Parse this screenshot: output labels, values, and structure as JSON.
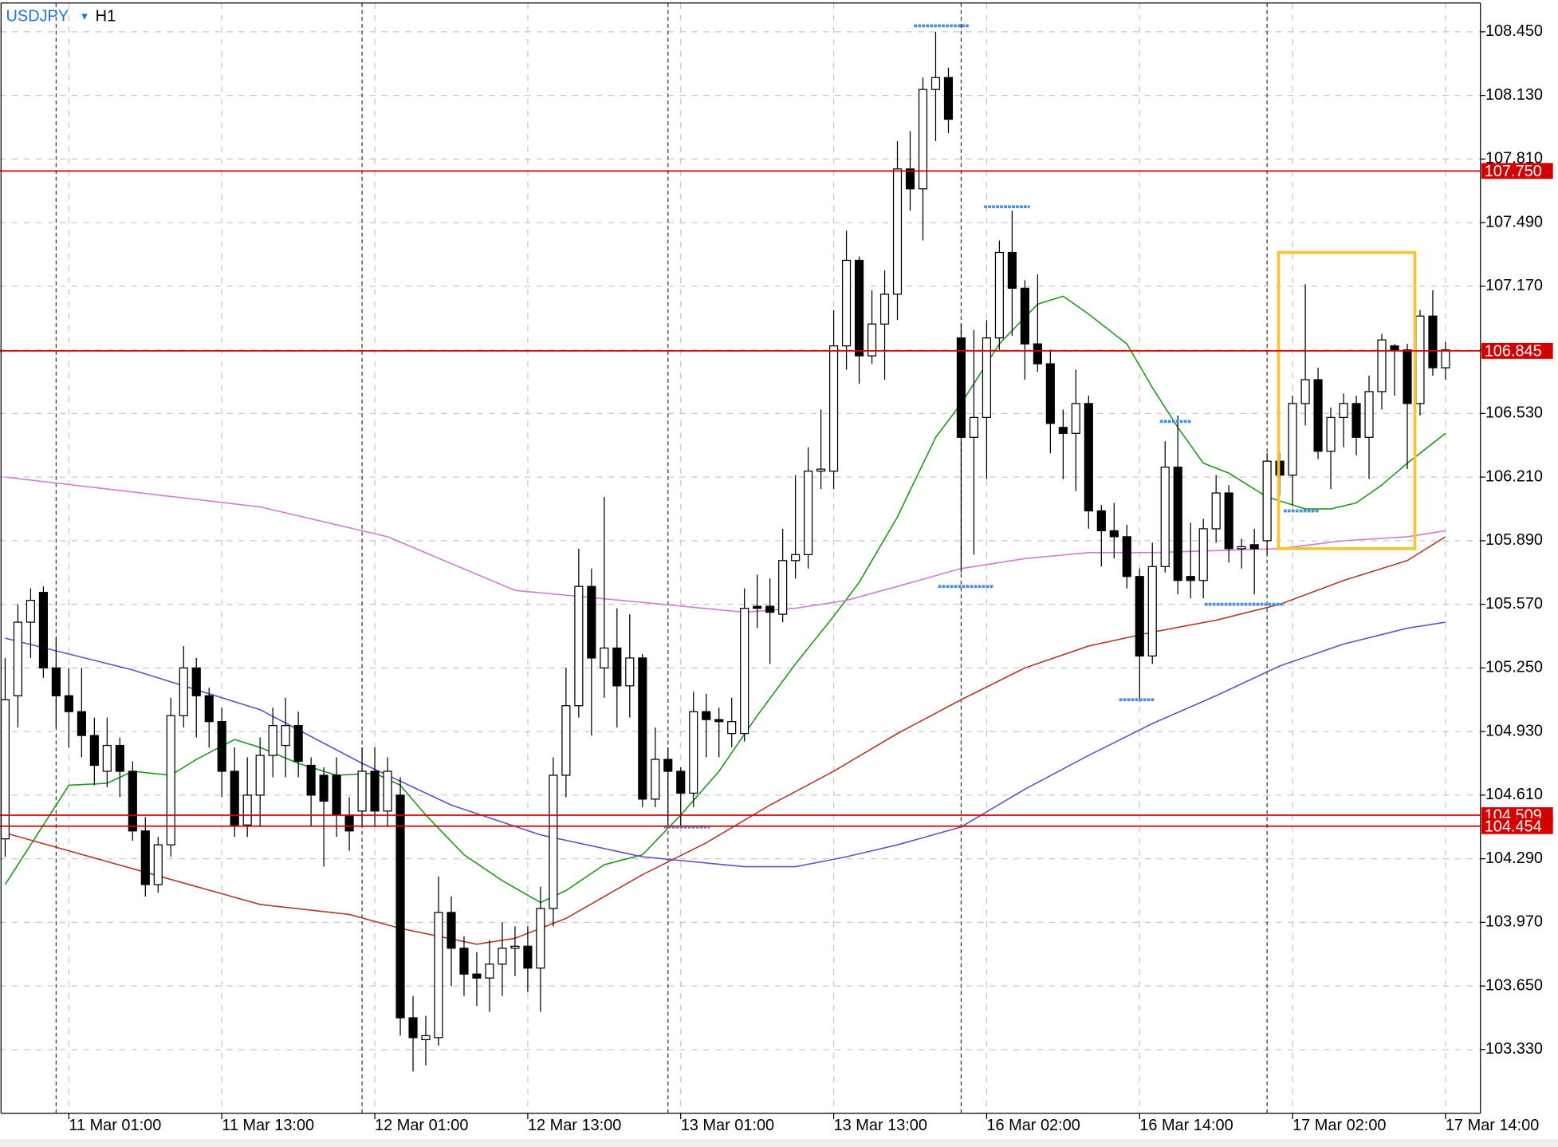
{
  "chart_data": {
    "type": "candlestick",
    "title": "USDJPY",
    "menu": "▾",
    "timeframe": "H1",
    "xlim": [
      -0.4,
      115.74
    ],
    "ylim": [
      103.01,
      108.595
    ],
    "yticks": [
      {
        "value": 108.45,
        "label": "108.450"
      },
      {
        "value": 108.13,
        "label": "108.130"
      },
      {
        "value": 107.81,
        "label": "107.810"
      },
      {
        "value": 107.49,
        "label": "107.490"
      },
      {
        "value": 107.17,
        "label": "107.170"
      },
      {
        "value": 106.85,
        "label": "106.850"
      },
      {
        "value": 106.53,
        "label": "106.530"
      },
      {
        "value": 106.21,
        "label": "106.210"
      },
      {
        "value": 105.89,
        "label": "105.890"
      },
      {
        "value": 105.57,
        "label": "105.570"
      },
      {
        "value": 105.25,
        "label": "105.250"
      },
      {
        "value": 104.93,
        "label": "104.930"
      },
      {
        "value": 104.61,
        "label": "104.610"
      },
      {
        "value": 104.29,
        "label": "104.290"
      },
      {
        "value": 103.97,
        "label": "103.970"
      },
      {
        "value": 103.65,
        "label": "103.650"
      },
      {
        "value": 103.33,
        "label": "103.330"
      }
    ],
    "xticks": [
      {
        "value": 5,
        "label": "11 Mar 01:00"
      },
      {
        "value": 17,
        "label": "11 Mar 13:00"
      },
      {
        "value": 29,
        "label": "12 Mar 01:00"
      },
      {
        "value": 41,
        "label": "12 Mar 13:00"
      },
      {
        "value": 53,
        "label": "13 Mar 01:00"
      },
      {
        "value": 65,
        "label": "13 Mar 13:00"
      },
      {
        "value": 77,
        "label": "16 Mar 02:00"
      },
      {
        "value": 89,
        "label": "16 Mar 14:00"
      },
      {
        "value": 101,
        "label": "17 Mar 02:00"
      },
      {
        "value": 113,
        "label": "17 Mar 14:00"
      }
    ],
    "separators": [
      4,
      28,
      52,
      75,
      99
    ],
    "grid": true,
    "open": [
      104.39,
      105.11,
      105.48,
      105.63,
      105.25,
      105.11,
      105.03,
      104.91,
      104.73,
      104.86,
      104.73,
      104.43,
      104.16,
      104.36,
      105.01,
      105.25,
      105.11,
      104.98,
      104.73,
      104.46,
      104.61,
      104.81,
      104.86,
      104.96,
      104.76,
      104.71,
      104.71,
      104.51,
      104.53,
      104.73,
      104.53,
      104.61,
      103.49,
      103.38,
      103.39,
      104.02,
      103.84,
      103.71,
      103.69,
      103.76,
      103.84,
      103.85,
      103.74,
      104.04,
      104.71,
      105.06,
      105.66,
      105.25,
      105.35,
      105.16,
      105.3,
      104.59,
      104.79,
      104.73,
      104.62,
      105.03,
      104.99,
      104.92,
      104.92,
      105.56,
      105.56,
      105.52,
      105.79,
      105.82,
      106.24,
      106.24,
      106.87,
      107.3,
      106.82,
      106.98,
      107.13,
      107.76,
      107.66,
      108.16,
      108.22,
      106.91,
      106.41,
      106.51,
      106.91,
      107.34,
      107.16,
      106.88,
      106.78,
      106.46,
      106.43,
      106.58,
      106.04,
      105.94,
      105.91,
      105.71,
      105.31,
      105.76,
      106.26,
      105.71,
      105.69,
      105.95,
      106.13,
      105.85,
      105.87,
      105.89,
      106.29,
      106.22,
      106.58,
      106.7,
      106.34,
      106.51,
      106.58,
      106.41,
      106.64,
      106.87,
      106.85,
      106.58,
      107.02,
      106.76
    ],
    "high": [
      105.3,
      105.57,
      105.65,
      105.66,
      105.4,
      105.25,
      105.25,
      105.0,
      105.0,
      104.9,
      104.78,
      104.5,
      104.4,
      105.1,
      105.36,
      105.3,
      105.15,
      105.05,
      104.85,
      104.8,
      104.9,
      105.05,
      105.1,
      105.03,
      104.8,
      104.75,
      104.8,
      104.6,
      104.85,
      104.85,
      104.8,
      104.7,
      103.6,
      103.5,
      104.2,
      104.1,
      103.9,
      103.82,
      103.88,
      103.97,
      103.95,
      103.95,
      104.15,
      104.8,
      105.25,
      105.85,
      105.75,
      106.11,
      105.55,
      105.52,
      105.32,
      104.95,
      104.85,
      104.75,
      105.13,
      105.12,
      105.05,
      105.1,
      105.65,
      105.72,
      105.7,
      105.95,
      106.22,
      106.36,
      106.55,
      107.05,
      107.45,
      107.32,
      107.15,
      107.25,
      107.9,
      107.95,
      108.22,
      108.45,
      108.27,
      106.98,
      106.95,
      107.0,
      107.4,
      107.55,
      107.2,
      107.23,
      106.85,
      106.55,
      106.75,
      106.62,
      106.07,
      106.08,
      105.97,
      105.75,
      105.88,
      106.39,
      106.52,
      105.98,
      106.0,
      106.22,
      106.17,
      105.9,
      105.95,
      106.33,
      106.33,
      106.62,
      107.18,
      106.76,
      106.56,
      106.63,
      106.62,
      106.72,
      106.93,
      106.88,
      106.88,
      107.05,
      107.15,
      106.89
    ],
    "low": [
      104.3,
      104.95,
      105.3,
      105.2,
      104.95,
      104.85,
      104.8,
      104.66,
      104.65,
      104.6,
      104.38,
      104.1,
      104.12,
      104.3,
      104.95,
      104.9,
      104.85,
      104.6,
      104.4,
      104.4,
      104.45,
      104.7,
      104.7,
      104.7,
      104.45,
      104.25,
      104.4,
      104.33,
      104.45,
      104.45,
      104.45,
      103.4,
      103.22,
      103.25,
      103.35,
      103.65,
      103.6,
      103.55,
      103.52,
      103.6,
      103.7,
      103.62,
      103.52,
      103.95,
      104.6,
      105.0,
      104.91,
      105.1,
      104.95,
      105.0,
      104.55,
      104.55,
      104.46,
      104.45,
      104.55,
      104.8,
      104.8,
      104.85,
      104.88,
      105.45,
      105.27,
      105.48,
      105.7,
      105.75,
      106.15,
      106.15,
      106.75,
      106.68,
      106.78,
      106.7,
      107.0,
      107.55,
      107.4,
      107.9,
      107.94,
      105.73,
      105.82,
      106.2,
      106.85,
      106.92,
      106.7,
      106.74,
      106.33,
      106.2,
      106.14,
      105.95,
      105.76,
      105.8,
      105.65,
      105.08,
      105.27,
      105.73,
      105.62,
      105.6,
      105.6,
      105.88,
      105.78,
      105.75,
      105.62,
      105.82,
      106.12,
      106.07,
      106.47,
      106.3,
      106.15,
      106.36,
      106.32,
      106.2,
      106.55,
      106.62,
      106.25,
      106.52,
      106.72,
      106.7
    ],
    "close": [
      105.09,
      105.48,
      105.59,
      105.25,
      105.11,
      105.03,
      104.91,
      104.76,
      104.86,
      104.73,
      104.43,
      104.16,
      104.36,
      105.01,
      105.25,
      105.11,
      104.98,
      104.73,
      104.46,
      104.61,
      104.81,
      104.96,
      104.96,
      104.78,
      104.61,
      104.58,
      104.51,
      104.43,
      104.73,
      104.53,
      104.73,
      103.49,
      103.39,
      103.4,
      104.02,
      103.84,
      103.71,
      103.69,
      103.76,
      103.84,
      103.85,
      103.74,
      104.04,
      104.71,
      105.06,
      105.66,
      105.3,
      105.35,
      105.16,
      105.3,
      104.59,
      104.79,
      104.73,
      104.62,
      105.03,
      104.99,
      104.98,
      104.98,
      105.55,
      105.55,
      105.53,
      105.79,
      105.82,
      106.24,
      106.25,
      106.87,
      107.3,
      106.82,
      106.98,
      107.13,
      107.76,
      107.66,
      108.16,
      108.22,
      108.01,
      106.41,
      106.51,
      106.91,
      107.34,
      107.16,
      106.88,
      106.78,
      106.48,
      106.43,
      106.58,
      106.04,
      105.94,
      105.91,
      105.71,
      105.31,
      105.76,
      106.26,
      105.69,
      105.69,
      105.95,
      106.13,
      105.85,
      105.86,
      105.85,
      106.29,
      106.22,
      106.58,
      106.7,
      106.34,
      106.51,
      106.58,
      106.41,
      106.64,
      106.9,
      106.85,
      106.58,
      107.02,
      106.76,
      106.85
    ],
    "series": [
      {
        "color": "#1f9a1f",
        "x": [
          0,
          5,
          8,
          10,
          13,
          15,
          18,
          20,
          23,
          26,
          29,
          31,
          33,
          36,
          39,
          42,
          44,
          47,
          50,
          53,
          56,
          59,
          62,
          65,
          67,
          70,
          73,
          75,
          78,
          81,
          83,
          85,
          88,
          90,
          92,
          94,
          96,
          99,
          102,
          104,
          106,
          108,
          110,
          113
        ],
        "values": [
          104.16,
          104.66,
          104.67,
          104.73,
          104.71,
          104.79,
          104.89,
          104.85,
          104.77,
          104.71,
          104.72,
          104.66,
          104.51,
          104.31,
          104.18,
          104.07,
          104.13,
          104.26,
          104.31,
          104.51,
          104.73,
          105.01,
          105.27,
          105.51,
          105.68,
          106.01,
          106.41,
          106.58,
          106.88,
          107.08,
          107.12,
          107.03,
          106.88,
          106.66,
          106.46,
          106.28,
          106.23,
          106.11,
          106.05,
          106.05,
          106.08,
          106.17,
          106.28,
          106.43
        ]
      },
      {
        "color": "#d27ad6",
        "x": [
          0,
          20,
          30,
          40,
          45,
          50,
          58,
          62,
          66,
          70,
          75,
          80,
          85,
          90,
          95,
          100,
          105,
          110,
          113
        ],
        "values": [
          106.21,
          106.06,
          105.91,
          105.64,
          105.61,
          105.58,
          105.53,
          105.55,
          105.59,
          105.66,
          105.75,
          105.8,
          105.83,
          105.83,
          105.84,
          105.85,
          105.89,
          105.91,
          105.94
        ]
      },
      {
        "color": "#b23a2a",
        "x": [
          0,
          10,
          20,
          27,
          31,
          37,
          40,
          44,
          50,
          55,
          60,
          65,
          70,
          75,
          80,
          85,
          90,
          95,
          100,
          105,
          110,
          113
        ],
        "values": [
          104.42,
          104.24,
          104.06,
          104.01,
          103.94,
          103.86,
          103.89,
          103.99,
          104.21,
          104.37,
          104.56,
          104.73,
          104.92,
          105.09,
          105.25,
          105.36,
          105.43,
          105.49,
          105.57,
          105.69,
          105.79,
          105.91
        ]
      },
      {
        "color": "#6a4fc4",
        "x": [
          0,
          10,
          20,
          28,
          35,
          42,
          50,
          58,
          62,
          66,
          70,
          75,
          80,
          85,
          90,
          95,
          100,
          105,
          110,
          113
        ],
        "values": [
          105.4,
          105.24,
          105.04,
          104.77,
          104.56,
          104.41,
          104.3,
          104.25,
          104.25,
          104.3,
          104.36,
          104.45,
          104.64,
          104.81,
          104.97,
          105.11,
          105.26,
          105.37,
          105.45,
          105.48
        ]
      }
    ],
    "levels": [
      {
        "value": 107.75,
        "label": "107.750"
      },
      {
        "value": 106.845,
        "label": "106.845"
      },
      {
        "value": 104.509,
        "label": "104.509"
      },
      {
        "value": 104.454,
        "label": "104.454"
      }
    ],
    "level_color": "#d40000",
    "markers": [
      {
        "x": [
          71.3,
          75.6
        ],
        "value": 108.48
      },
      {
        "x": [
          76.8,
          80.4
        ],
        "value": 107.57
      },
      {
        "x": [
          73.2,
          77.5
        ],
        "value": 105.66
      },
      {
        "x": [
          90.6,
          93.1
        ],
        "value": 106.49
      },
      {
        "x": [
          87.4,
          90.2
        ],
        "value": 105.09
      },
      {
        "x": [
          94.1,
          100.4
        ],
        "value": 105.57
      },
      {
        "x": [
          100.3,
          103.1
        ],
        "value": 106.04
      },
      {
        "x": [
          51.7,
          55.3
        ],
        "value": 104.45
      }
    ],
    "marker_color": "#4a8fe0",
    "highlight": {
      "x": [
        99.9,
        110.6
      ],
      "y": [
        105.85,
        107.34
      ],
      "color": "#f5c533"
    }
  }
}
